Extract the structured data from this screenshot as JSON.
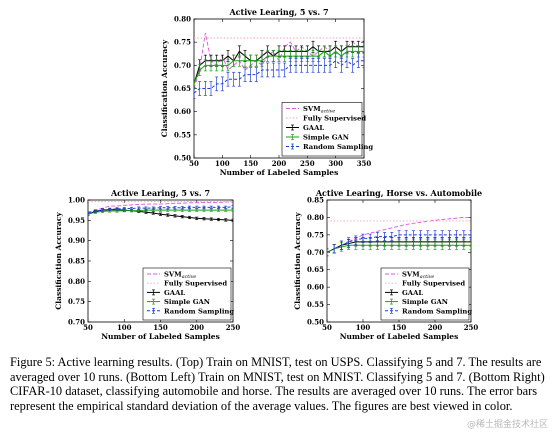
{
  "caption": "Figure 5: Active learning results. (Top) Train on MNIST, test on USPS. Classifying 5 and 7. The results are averaged over 10 runs. (Bottom Left) Train on MNIST, test on MNIST. Classifying 5 and 7. (Bottom Right) CIFAR-10 dataset, classifying automobile and horse. The results are averaged over 10 runs. The error bars represent the empirical standard deviation of the average values. The figures are best viewed in color.",
  "watermark": "@稀土掘金技术社区",
  "colors": {
    "svm": "#e055e0",
    "fully": "#f2a0c8",
    "gaal": "#000000",
    "sgan": "#1aa01a",
    "random": "#1f3fd8"
  },
  "chart_data": [
    {
      "type": "line",
      "title": "Active Learing, 5 vs. 7",
      "xlabel": "Number of Labeled Samples",
      "ylabel": "Classification Accuracy",
      "xlim": [
        50,
        350
      ],
      "ylim": [
        0.5,
        0.8
      ],
      "xticks": [
        50,
        100,
        150,
        200,
        250,
        300,
        350
      ],
      "yticks": [
        0.5,
        0.55,
        0.6,
        0.65,
        0.7,
        0.75,
        0.8
      ],
      "legend_position": "bottom-right",
      "x": [
        50,
        60,
        70,
        80,
        90,
        100,
        110,
        120,
        130,
        140,
        150,
        160,
        170,
        180,
        190,
        200,
        210,
        220,
        230,
        240,
        250,
        260,
        270,
        280,
        290,
        300,
        310,
        320,
        330,
        340,
        350
      ],
      "series": [
        {
          "name": "SVM",
          "name_sub": "active",
          "style": "svm",
          "values": [
            0.65,
            0.69,
            0.77,
            0.71,
            0.7,
            0.72,
            0.69,
            0.7,
            0.71,
            0.69,
            0.7,
            0.71,
            0.7,
            0.72,
            0.73,
            0.71,
            0.74,
            0.75,
            0.73,
            0.74,
            0.73,
            0.72,
            0.73,
            0.74,
            0.73,
            0.74,
            0.73,
            0.74,
            0.75,
            0.74,
            0.74
          ]
        },
        {
          "name": "Fully Supervised",
          "style": "fully",
          "values": [
            0.759,
            0.759,
            0.759,
            0.759,
            0.759,
            0.759,
            0.759,
            0.759,
            0.759,
            0.759,
            0.759,
            0.759,
            0.759,
            0.759,
            0.759,
            0.759,
            0.759,
            0.759,
            0.759,
            0.759,
            0.759,
            0.759,
            0.759,
            0.759,
            0.759,
            0.759,
            0.759,
            0.759,
            0.759,
            0.759,
            0.759
          ]
        },
        {
          "name": "GAAL",
          "style": "gaal",
          "values": [
            0.66,
            0.7,
            0.71,
            0.71,
            0.71,
            0.71,
            0.72,
            0.71,
            0.73,
            0.72,
            0.71,
            0.71,
            0.72,
            0.73,
            0.72,
            0.73,
            0.73,
            0.73,
            0.73,
            0.73,
            0.73,
            0.74,
            0.73,
            0.73,
            0.73,
            0.74,
            0.73,
            0.74,
            0.74,
            0.74,
            0.74
          ],
          "err": [
            0.01,
            0.012,
            0.012,
            0.012,
            0.012,
            0.012,
            0.012,
            0.012,
            0.012,
            0.012,
            0.012,
            0.012,
            0.012,
            0.012,
            0.012,
            0.012,
            0.012,
            0.012,
            0.012,
            0.012,
            0.012,
            0.012,
            0.012,
            0.012,
            0.012,
            0.012,
            0.012,
            0.012,
            0.012,
            0.012,
            0.012
          ]
        },
        {
          "name": "Simple GAN",
          "style": "sgan",
          "values": [
            0.66,
            0.69,
            0.7,
            0.7,
            0.7,
            0.7,
            0.7,
            0.71,
            0.71,
            0.71,
            0.71,
            0.71,
            0.71,
            0.72,
            0.72,
            0.72,
            0.72,
            0.72,
            0.72,
            0.72,
            0.72,
            0.72,
            0.72,
            0.73,
            0.72,
            0.73,
            0.72,
            0.73,
            0.73,
            0.73,
            0.73
          ],
          "err": [
            0.01,
            0.012,
            0.012,
            0.012,
            0.012,
            0.012,
            0.012,
            0.012,
            0.012,
            0.012,
            0.012,
            0.012,
            0.012,
            0.012,
            0.012,
            0.012,
            0.012,
            0.012,
            0.012,
            0.012,
            0.012,
            0.012,
            0.012,
            0.012,
            0.012,
            0.012,
            0.012,
            0.012,
            0.012,
            0.012,
            0.012
          ]
        },
        {
          "name": "Random Sampling",
          "style": "random",
          "values": [
            0.64,
            0.65,
            0.65,
            0.65,
            0.66,
            0.66,
            0.67,
            0.67,
            0.67,
            0.68,
            0.68,
            0.68,
            0.69,
            0.69,
            0.69,
            0.69,
            0.69,
            0.7,
            0.7,
            0.7,
            0.7,
            0.7,
            0.7,
            0.7,
            0.7,
            0.71,
            0.7,
            0.71,
            0.7,
            0.71,
            0.71
          ],
          "err": [
            0.012,
            0.015,
            0.015,
            0.015,
            0.015,
            0.015,
            0.015,
            0.015,
            0.015,
            0.015,
            0.015,
            0.015,
            0.015,
            0.015,
            0.015,
            0.015,
            0.015,
            0.015,
            0.015,
            0.015,
            0.015,
            0.015,
            0.015,
            0.015,
            0.015,
            0.015,
            0.015,
            0.015,
            0.015,
            0.015,
            0.015
          ]
        }
      ]
    },
    {
      "type": "line",
      "title": "Active Learing, 5 vs. 7",
      "xlabel": "Number of Labeled Samples",
      "ylabel": "Classification Accuracy",
      "xlim": [
        50,
        250
      ],
      "ylim": [
        0.7,
        1.0
      ],
      "xticks": [
        50,
        100,
        150,
        200,
        250
      ],
      "yticks": [
        0.7,
        0.75,
        0.8,
        0.85,
        0.9,
        0.95,
        1.0
      ],
      "legend_position": "bottom-right",
      "x": [
        50,
        60,
        70,
        80,
        90,
        100,
        110,
        120,
        130,
        140,
        150,
        160,
        170,
        180,
        190,
        200,
        210,
        220,
        230,
        240,
        250
      ],
      "series": [
        {
          "name": "SVM",
          "name_sub": "active",
          "style": "svm",
          "values": [
            0.97,
            0.975,
            0.98,
            0.985,
            0.985,
            0.987,
            0.988,
            0.989,
            0.99,
            0.99,
            0.99,
            0.991,
            0.992,
            0.992,
            0.993,
            0.993,
            0.994,
            0.994,
            0.994,
            0.995,
            0.995
          ]
        },
        {
          "name": "Fully Supervised",
          "style": "fully",
          "values": [
            0.996,
            0.996,
            0.996,
            0.996,
            0.996,
            0.996,
            0.996,
            0.996,
            0.996,
            0.996,
            0.996,
            0.996,
            0.996,
            0.996,
            0.996,
            0.996,
            0.996,
            0.996,
            0.996,
            0.996,
            0.996
          ]
        },
        {
          "name": "GAAL",
          "style": "gaal",
          "values": [
            0.965,
            0.972,
            0.975,
            0.976,
            0.976,
            0.975,
            0.974,
            0.972,
            0.97,
            0.968,
            0.965,
            0.963,
            0.961,
            0.959,
            0.957,
            0.955,
            0.954,
            0.953,
            0.952,
            0.951,
            0.95
          ],
          "err": [
            0.003,
            0.003,
            0.003,
            0.003,
            0.003,
            0.003,
            0.003,
            0.003,
            0.003,
            0.003,
            0.003,
            0.003,
            0.003,
            0.003,
            0.003,
            0.003,
            0.003,
            0.003,
            0.003,
            0.003,
            0.003
          ]
        },
        {
          "name": "Simple GAN",
          "style": "sgan",
          "values": [
            0.965,
            0.97,
            0.972,
            0.973,
            0.973,
            0.974,
            0.974,
            0.974,
            0.975,
            0.975,
            0.975,
            0.975,
            0.975,
            0.975,
            0.975,
            0.975,
            0.975,
            0.975,
            0.975,
            0.975,
            0.975
          ],
          "err": [
            0.003,
            0.003,
            0.003,
            0.003,
            0.003,
            0.003,
            0.003,
            0.003,
            0.003,
            0.003,
            0.003,
            0.003,
            0.003,
            0.003,
            0.003,
            0.003,
            0.003,
            0.003,
            0.003,
            0.003,
            0.003
          ]
        },
        {
          "name": "Random Sampling",
          "style": "random",
          "values": [
            0.968,
            0.973,
            0.976,
            0.977,
            0.978,
            0.979,
            0.979,
            0.98,
            0.98,
            0.98,
            0.981,
            0.981,
            0.981,
            0.981,
            0.982,
            0.982,
            0.982,
            0.982,
            0.982,
            0.982,
            0.983
          ],
          "err": [
            0.003,
            0.003,
            0.003,
            0.003,
            0.003,
            0.003,
            0.003,
            0.003,
            0.003,
            0.003,
            0.003,
            0.003,
            0.003,
            0.003,
            0.003,
            0.003,
            0.003,
            0.003,
            0.003,
            0.003,
            0.003
          ]
        }
      ]
    },
    {
      "type": "line",
      "title": "Active Learing, Horse vs. Automobile",
      "xlabel": "Number of Labeled Samples",
      "ylabel": "Classification Accuracy",
      "xlim": [
        50,
        250
      ],
      "ylim": [
        0.5,
        0.85
      ],
      "xticks": [
        50,
        100,
        150,
        200,
        250
      ],
      "yticks": [
        0.5,
        0.55,
        0.6,
        0.65,
        0.7,
        0.75,
        0.8,
        0.85
      ],
      "legend_position": "bottom-right",
      "x": [
        50,
        60,
        70,
        80,
        90,
        100,
        110,
        120,
        130,
        140,
        150,
        160,
        170,
        180,
        190,
        200,
        210,
        220,
        230,
        240,
        250
      ],
      "series": [
        {
          "name": "SVM",
          "name_sub": "active",
          "style": "svm",
          "values": [
            0.7,
            0.71,
            0.72,
            0.73,
            0.74,
            0.75,
            0.755,
            0.76,
            0.765,
            0.77,
            0.775,
            0.78,
            0.783,
            0.786,
            0.789,
            0.792,
            0.794,
            0.796,
            0.798,
            0.8,
            0.8
          ]
        },
        {
          "name": "Fully Supervised",
          "style": "fully",
          "values": [
            0.79,
            0.79,
            0.79,
            0.79,
            0.79,
            0.79,
            0.79,
            0.79,
            0.79,
            0.79,
            0.79,
            0.79,
            0.79,
            0.79,
            0.79,
            0.79,
            0.79,
            0.79,
            0.79,
            0.79,
            0.79
          ]
        },
        {
          "name": "GAAL",
          "style": "gaal",
          "values": [
            0.7,
            0.71,
            0.72,
            0.725,
            0.73,
            0.73,
            0.73,
            0.73,
            0.73,
            0.73,
            0.73,
            0.73,
            0.73,
            0.73,
            0.73,
            0.73,
            0.73,
            0.73,
            0.73,
            0.73,
            0.73
          ],
          "err": [
            0.01,
            0.012,
            0.012,
            0.012,
            0.012,
            0.012,
            0.012,
            0.012,
            0.012,
            0.012,
            0.012,
            0.012,
            0.012,
            0.012,
            0.012,
            0.012,
            0.012,
            0.012,
            0.012,
            0.012,
            0.012
          ]
        },
        {
          "name": "Simple GAN",
          "style": "sgan",
          "values": [
            0.7,
            0.71,
            0.715,
            0.72,
            0.72,
            0.72,
            0.72,
            0.72,
            0.72,
            0.72,
            0.72,
            0.72,
            0.72,
            0.72,
            0.72,
            0.72,
            0.72,
            0.72,
            0.72,
            0.72,
            0.72
          ],
          "err": [
            0.01,
            0.012,
            0.012,
            0.012,
            0.012,
            0.012,
            0.012,
            0.012,
            0.012,
            0.012,
            0.012,
            0.012,
            0.012,
            0.012,
            0.012,
            0.012,
            0.012,
            0.012,
            0.012,
            0.012,
            0.012
          ]
        },
        {
          "name": "Random Sampling",
          "style": "random",
          "values": [
            0.7,
            0.71,
            0.72,
            0.73,
            0.735,
            0.74,
            0.74,
            0.745,
            0.745,
            0.745,
            0.75,
            0.75,
            0.75,
            0.75,
            0.75,
            0.75,
            0.75,
            0.75,
            0.75,
            0.75,
            0.75
          ],
          "err": [
            0.01,
            0.012,
            0.012,
            0.012,
            0.012,
            0.012,
            0.012,
            0.012,
            0.012,
            0.012,
            0.012,
            0.012,
            0.012,
            0.012,
            0.012,
            0.012,
            0.012,
            0.012,
            0.012,
            0.012,
            0.012
          ]
        }
      ]
    }
  ]
}
